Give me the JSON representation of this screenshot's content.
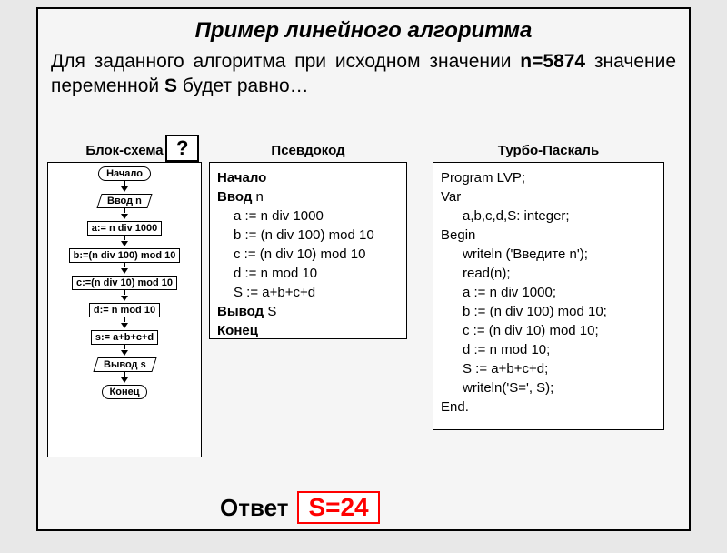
{
  "title": "Пример линейного алгоритма",
  "description_prefix": "Для заданного алгоритма при исходном значении ",
  "n_label": "n=5874",
  "description_mid": " значение переменной ",
  "s_label": "S",
  "description_suffix": " будет равно…",
  "question_mark": "?",
  "columns": {
    "flowchart_header": "Блок-схема",
    "pseudocode_header": "Псевдокод",
    "pascal_header": "Турбо-Паскаль"
  },
  "flowchart": {
    "nodes": [
      {
        "type": "terminal",
        "label": "Начало"
      },
      {
        "type": "io",
        "label": "Ввод n"
      },
      {
        "type": "process",
        "label": "a:= n div 1000"
      },
      {
        "type": "process",
        "label": "b:=(n div 100) mod 10"
      },
      {
        "type": "process",
        "label": "c:=(n div 10) mod 10"
      },
      {
        "type": "process",
        "label": "d:= n mod 10"
      },
      {
        "type": "process",
        "label": "s:= a+b+c+d"
      },
      {
        "type": "io",
        "label": "Вывод s"
      },
      {
        "type": "terminal",
        "label": "Конец"
      }
    ]
  },
  "pseudocode": {
    "lines": [
      {
        "text": "Начало",
        "bold": true,
        "indent": 0
      },
      {
        "text_prefix": "Ввод",
        "text_rest": " n",
        "bold_prefix": true,
        "indent": 0
      },
      {
        "text": "a := n div 1000",
        "indent": 1
      },
      {
        "text": "b := (n div 100) mod 10",
        "indent": 1
      },
      {
        "text": "c := (n div 10) mod 10",
        "indent": 1
      },
      {
        "text": "d := n mod 10",
        "indent": 1
      },
      {
        "text": "S := a+b+c+d",
        "indent": 1
      },
      {
        "text_prefix": "Вывод",
        "text_rest": " S",
        "bold_prefix": true,
        "indent": 0
      },
      {
        "text": "Конец",
        "bold": true,
        "indent": 0
      }
    ]
  },
  "pascal": {
    "lines": [
      {
        "text": "Program LVP;",
        "indent": 0
      },
      {
        "text": "Var",
        "indent": 0
      },
      {
        "text": "a,b,c,d,S: integer;",
        "indent": 2
      },
      {
        "text": "Begin",
        "indent": 0
      },
      {
        "text": "writeln ('Введите n');",
        "indent": 2
      },
      {
        "text": "read(n);",
        "indent": 2
      },
      {
        "text": "a := n div 1000;",
        "indent": 2
      },
      {
        "text": "b := (n div 100) mod 10;",
        "indent": 2
      },
      {
        "text": "c := (n div 10) mod 10;",
        "indent": 2
      },
      {
        "text": "d := n mod 10;",
        "indent": 2
      },
      {
        "text": "S := a+b+c+d;",
        "indent": 2
      },
      {
        "text": "writeln('S=', S);",
        "indent": 2
      },
      {
        "text": "End.",
        "indent": 0
      }
    ]
  },
  "answer": {
    "label": "Ответ",
    "value": "S=24",
    "value_color": "#ff0000",
    "border_color": "#ff0000"
  },
  "styling": {
    "background": "#e8e8e8",
    "box_bg": "#f5f5f5",
    "code_bg": "#ffffff",
    "border_color": "#000000",
    "title_fontsize": 24,
    "desc_fontsize": 21,
    "code_fontsize": 15,
    "flow_fontsize": 11
  }
}
